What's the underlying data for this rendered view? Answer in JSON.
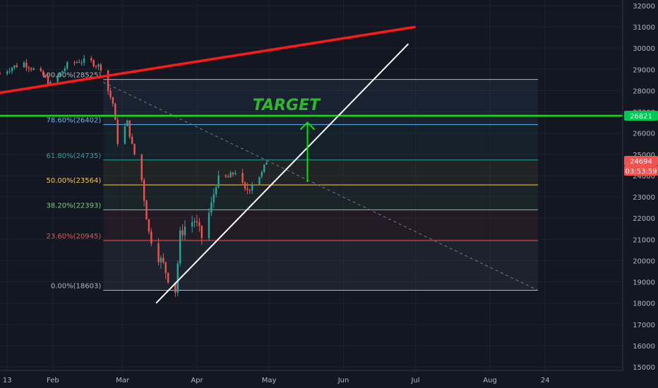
{
  "chart_data": {
    "type": "candlestick",
    "y_axis": {
      "range": [
        15000,
        32000
      ],
      "ticks": [
        15000,
        16000,
        17000,
        18000,
        19000,
        20000,
        21000,
        22000,
        23000,
        24000,
        25000,
        26000,
        27000,
        28000,
        29000,
        30000,
        31000,
        32000
      ],
      "tick_labels": [
        "15000",
        "16000",
        "17000",
        "18000",
        "19000",
        "20000",
        "21000",
        "22000",
        "23000",
        "24000",
        "25000",
        "26000",
        "27000",
        "28000",
        "29000",
        "30000",
        "31000",
        "32000"
      ]
    },
    "x_axis": {
      "range": [
        "2020-01-10",
        "2020-09-01"
      ],
      "ticks": [
        "2020-01-13",
        "2020-02-01",
        "2020-03-01",
        "2020-04-01",
        "2020-05-01",
        "2020-06-01",
        "2020-07-01",
        "2020-08-01",
        "2020-08-24"
      ],
      "tick_labels": [
        "13",
        "Feb",
        "Mar",
        "Apr",
        "May",
        "Jun",
        "Jul",
        "Aug",
        "24"
      ]
    },
    "grid": true,
    "candles": {
      "up_color": "#26a69a",
      "down_color": "#ef5350",
      "close_path": [
        [
          "2020-01-10",
          28800
        ],
        [
          "2020-01-15",
          29100
        ],
        [
          "2020-01-20",
          29300
        ],
        [
          "2020-01-24",
          29000
        ],
        [
          "2020-01-28",
          28700
        ],
        [
          "2020-01-31",
          28300
        ],
        [
          "2020-02-04",
          28800
        ],
        [
          "2020-02-07",
          29200
        ],
        [
          "2020-02-12",
          29400
        ],
        [
          "2020-02-17",
          29350
        ],
        [
          "2020-02-21",
          29100
        ],
        [
          "2020-02-24",
          28000
        ],
        [
          "2020-02-26",
          27400
        ],
        [
          "2020-02-28",
          25600
        ],
        [
          "2020-03-03",
          26500
        ],
        [
          "2020-03-05",
          25400
        ],
        [
          "2020-03-09",
          23800
        ],
        [
          "2020-03-12",
          21300
        ],
        [
          "2020-03-16",
          20200
        ],
        [
          "2020-03-18",
          19800
        ],
        [
          "2020-03-20",
          19200
        ],
        [
          "2020-03-23",
          18600
        ],
        [
          "2020-03-25",
          21200
        ],
        [
          "2020-03-27",
          21600
        ],
        [
          "2020-03-31",
          21900
        ],
        [
          "2020-04-03",
          21100
        ],
        [
          "2020-04-07",
          22600
        ],
        [
          "2020-04-09",
          23700
        ],
        [
          "2020-04-14",
          23900
        ],
        [
          "2020-04-17",
          24200
        ],
        [
          "2020-04-21",
          23200
        ],
        [
          "2020-04-24",
          23700
        ],
        [
          "2020-04-28",
          24100
        ],
        [
          "2020-04-30",
          24700
        ]
      ]
    },
    "fib_retracement": {
      "start_date": "2020-02-22",
      "end_date": "2020-08-21",
      "levels": [
        {
          "label": "100.00%(28525)",
          "value": 28525,
          "color": "#b2b5be"
        },
        {
          "label": "78.60%(26402)",
          "value": 26402,
          "color": "#64b5f6"
        },
        {
          "label": "61.80%(24735)",
          "value": 24735,
          "color": "#26a69a"
        },
        {
          "label": "50.00%(23564)",
          "value": 23564,
          "color": "#f7c65a"
        },
        {
          "label": "38.20%(22393)",
          "value": 22393,
          "color": "#81c784"
        },
        {
          "label": "23.60%(20945)",
          "value": 20945,
          "color": "#ef5350"
        },
        {
          "label": "0.00%(18603)",
          "value": 18603,
          "color": "#b2b5be"
        }
      ]
    },
    "annotations": {
      "target_text": "TARGET",
      "target_value": 26821,
      "target_color": "#00e600",
      "red_trendline": {
        "from": [
          "2020-01-10",
          27900
        ],
        "to": [
          "2020-07-01",
          31000
        ],
        "color": "#ff1a1a"
      },
      "white_trendline": {
        "from": [
          "2020-03-15",
          18000
        ],
        "to": [
          "2020-06-28",
          30200
        ],
        "color": "#ffffff"
      },
      "dashed_line": {
        "from": [
          "2020-02-22",
          28400
        ],
        "to": [
          "2020-08-21",
          18600
        ],
        "color": "#787b86"
      },
      "arrow": {
        "from": [
          "2020-05-17",
          23700
        ],
        "to": [
          "2020-05-17",
          26500
        ],
        "color": "#00e600"
      }
    },
    "price_badges": [
      {
        "label": "26821",
        "value": 26821,
        "color": "#00c853"
      },
      {
        "label": "24694",
        "value": 24694,
        "color": "#ef5350"
      },
      {
        "label": "03:53:59",
        "value": 24300,
        "color": "#ef5350"
      }
    ]
  }
}
